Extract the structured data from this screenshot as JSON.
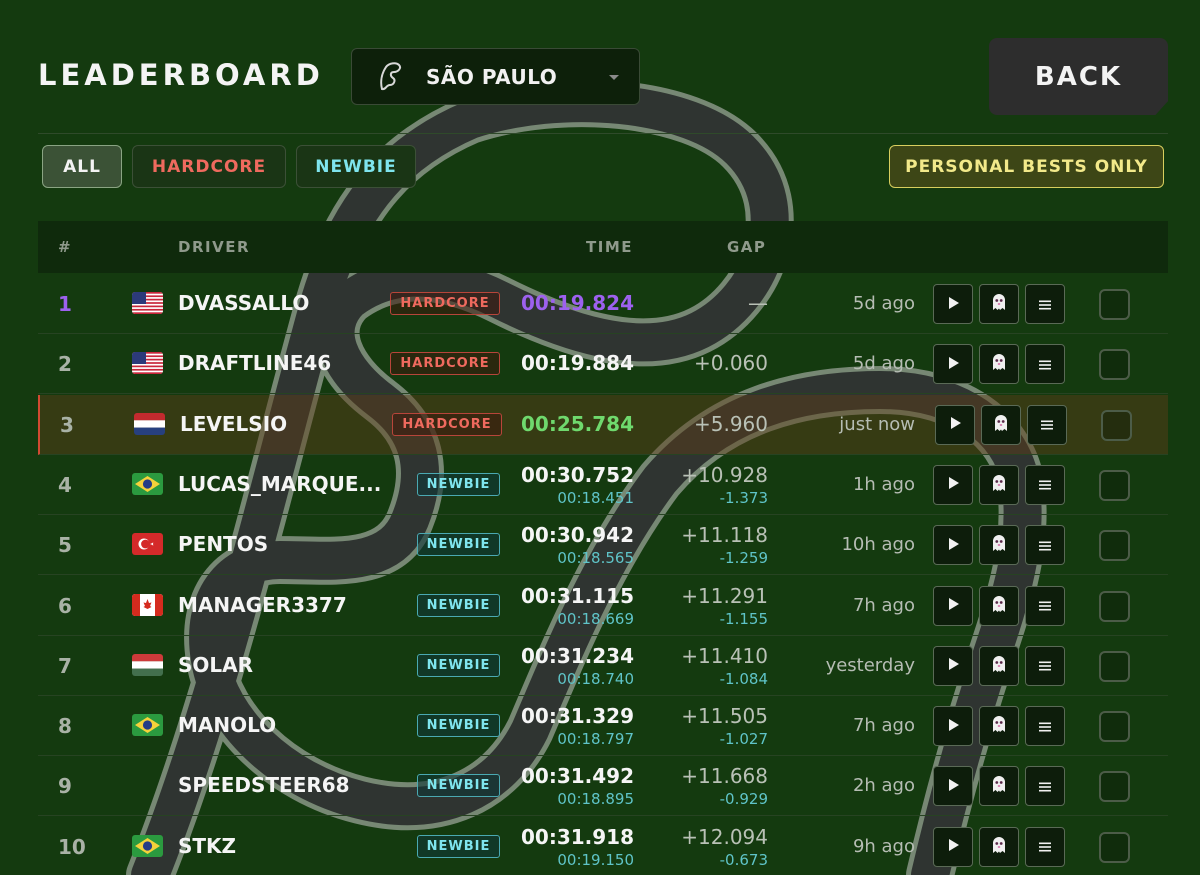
{
  "header": {
    "title": "LEADERBOARD",
    "track": "SÃO PAULO",
    "back_label": "BACK"
  },
  "filters": {
    "all": "ALL",
    "hardcore": "HARDCORE",
    "newbie": "NEWBIE",
    "personal_bests": "PERSONAL BESTS ONLY"
  },
  "columns": {
    "rank": "#",
    "driver": "DRIVER",
    "time": "TIME",
    "gap": "GAP"
  },
  "colors": {
    "background": "#143a0f",
    "first_place": "#9d61ee",
    "personal_best": "#6fd96d",
    "hardcore": "#ef6a5e",
    "newbie": "#7fe5ee"
  },
  "rows": [
    {
      "rank": "1",
      "flag": "us",
      "driver": "DVASSALLO",
      "mode": "HARDCORE",
      "time": "00:19.824",
      "sub_time": "",
      "gap": "—",
      "sub_gap": "",
      "ago": "5d ago"
    },
    {
      "rank": "2",
      "flag": "us",
      "driver": "DRAFTLINE46",
      "mode": "HARDCORE",
      "time": "00:19.884",
      "sub_time": "",
      "gap": "+0.060",
      "sub_gap": "",
      "ago": "5d ago"
    },
    {
      "rank": "3",
      "flag": "nl",
      "driver": "LEVELSIO",
      "mode": "HARDCORE",
      "time": "00:25.784",
      "sub_time": "",
      "gap": "+5.960",
      "sub_gap": "",
      "ago": "just now"
    },
    {
      "rank": "4",
      "flag": "br",
      "driver": "LUCAS_MARQUE...",
      "mode": "NEWBIE",
      "time": "00:30.752",
      "sub_time": "00:18.451",
      "gap": "+10.928",
      "sub_gap": "-1.373",
      "ago": "1h ago"
    },
    {
      "rank": "5",
      "flag": "tr",
      "driver": "PENTOS",
      "mode": "NEWBIE",
      "time": "00:30.942",
      "sub_time": "00:18.565",
      "gap": "+11.118",
      "sub_gap": "-1.259",
      "ago": "10h ago"
    },
    {
      "rank": "6",
      "flag": "ca",
      "driver": "MANAGER3377",
      "mode": "NEWBIE",
      "time": "00:31.115",
      "sub_time": "00:18.669",
      "gap": "+11.291",
      "sub_gap": "-1.155",
      "ago": "7h ago"
    },
    {
      "rank": "7",
      "flag": "hu",
      "driver": "SOLAR",
      "mode": "NEWBIE",
      "time": "00:31.234",
      "sub_time": "00:18.740",
      "gap": "+11.410",
      "sub_gap": "-1.084",
      "ago": "yesterday"
    },
    {
      "rank": "8",
      "flag": "br",
      "driver": "MANOLO",
      "mode": "NEWBIE",
      "time": "00:31.329",
      "sub_time": "00:18.797",
      "gap": "+11.505",
      "sub_gap": "-1.027",
      "ago": "7h ago"
    },
    {
      "rank": "9",
      "flag": "",
      "driver": "SPEEDSTEER68",
      "mode": "NEWBIE",
      "time": "00:31.492",
      "sub_time": "00:18.895",
      "gap": "+11.668",
      "sub_gap": "-0.929",
      "ago": "2h ago"
    },
    {
      "rank": "10",
      "flag": "br",
      "driver": "STKZ",
      "mode": "NEWBIE",
      "time": "00:31.918",
      "sub_time": "00:19.150",
      "gap": "+12.094",
      "sub_gap": "-0.673",
      "ago": "9h ago"
    }
  ],
  "icons": {
    "play": "play-icon",
    "ghost": "ghost-icon",
    "list": "list-icon",
    "circuit": "circuit-icon"
  }
}
